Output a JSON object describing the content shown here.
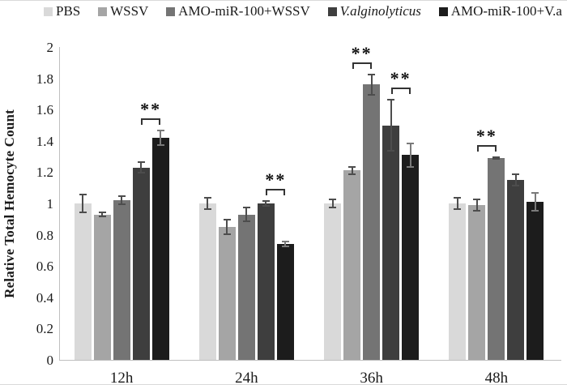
{
  "figure": {
    "background": "#ffffff",
    "border_color": "#d9d9d9"
  },
  "chart_data": {
    "type": "bar",
    "title": "",
    "xlabel": "",
    "ylabel": "Relative Total Hemocyte Count",
    "ylim": [
      0,
      2
    ],
    "yticks": [
      0,
      0.2,
      0.4,
      0.6,
      0.8,
      1,
      1.2,
      1.4,
      1.6,
      1.8,
      2
    ],
    "ytick_labels": [
      "0",
      "0.2",
      "0.4",
      "0.6",
      "0.8",
      "1",
      "1.2",
      "1.4",
      "1.6",
      "1.8",
      "2"
    ],
    "categories": [
      "12h",
      "24h",
      "36h",
      "48h"
    ],
    "grid": false,
    "legend_position": "top",
    "axis_color": "#bfbfbf",
    "text_color": "#1a1a1a",
    "bracket_color": "#333333",
    "series": [
      {
        "name": "PBS",
        "color": "#d9d9d9",
        "error_color": "#4d4d4d",
        "italic": false,
        "values": [
          1.0,
          1.0,
          1.0,
          1.0
        ],
        "errors": [
          0.06,
          0.04,
          0.03,
          0.04
        ]
      },
      {
        "name": "WSSV",
        "color": "#a5a5a5",
        "error_color": "#4d4d4d",
        "italic": false,
        "values": [
          0.93,
          0.85,
          1.21,
          0.99
        ],
        "errors": [
          0.02,
          0.05,
          0.03,
          0.04
        ]
      },
      {
        "name": "AMO-miR-100+WSSV",
        "color": "#747474",
        "error_color": "#4d4d4d",
        "italic": false,
        "values": [
          1.02,
          0.93,
          1.76,
          1.29
        ],
        "errors": [
          0.03,
          0.05,
          0.07,
          0.01
        ]
      },
      {
        "name": "V.alginolyticus",
        "color": "#3e3e3e",
        "error_color": "#4d4d4d",
        "italic": true,
        "values": [
          1.23,
          1.0,
          1.5,
          1.15
        ],
        "errors": [
          0.04,
          0.02,
          0.17,
          0.04
        ]
      },
      {
        "name": "AMO-miR-100+V.a",
        "color": "#1c1c1c",
        "error_color": "#7a7a7a",
        "italic": false,
        "values": [
          1.42,
          0.74,
          1.31,
          1.01
        ],
        "errors": [
          0.05,
          0.02,
          0.08,
          0.06
        ]
      }
    ],
    "significance": [
      {
        "group": 0,
        "bars": [
          3,
          4
        ],
        "label": "**"
      },
      {
        "group": 1,
        "bars": [
          3,
          4
        ],
        "label": "**"
      },
      {
        "group": 2,
        "bars": [
          1,
          2
        ],
        "label": "**"
      },
      {
        "group": 2,
        "bars": [
          3,
          4
        ],
        "label": "**"
      },
      {
        "group": 3,
        "bars": [
          1,
          2
        ],
        "label": "**"
      }
    ]
  }
}
